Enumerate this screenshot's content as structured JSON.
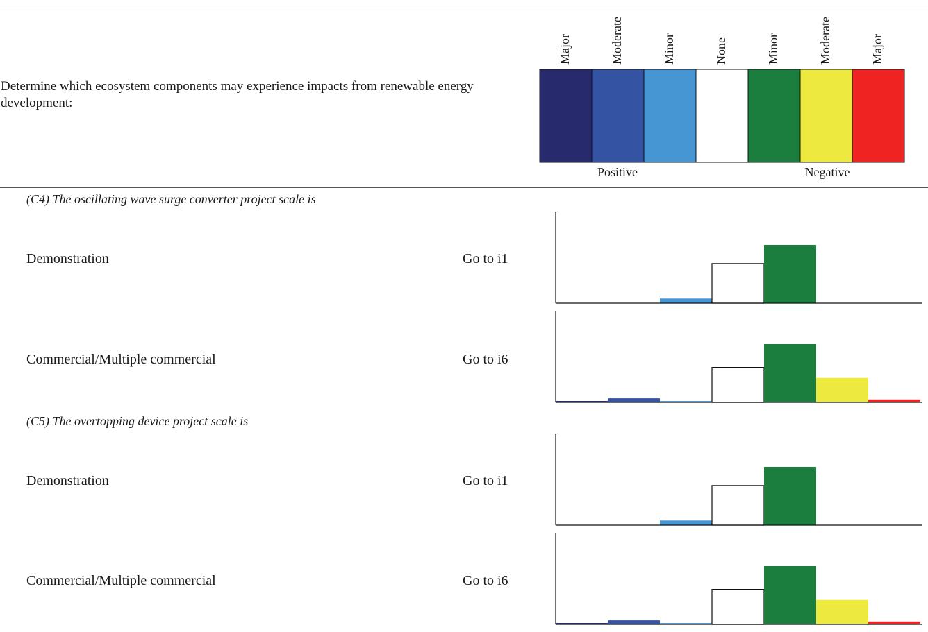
{
  "intro_text": "Determine which ecosystem components may experience impacts from renewable energy development:",
  "legend": {
    "categories": [
      {
        "label": "Major",
        "color": "#272a6d"
      },
      {
        "label": "Moderate",
        "color": "#3453a3"
      },
      {
        "label": "Minor",
        "color": "#4796d4"
      },
      {
        "label": "None",
        "color": "#ffffff"
      },
      {
        "label": "Minor",
        "color": "#1b7e3e"
      },
      {
        "label": "Moderate",
        "color": "#eee93e"
      },
      {
        "label": "Major",
        "color": "#ee2322"
      }
    ],
    "groups": [
      "Positive",
      "Negative"
    ]
  },
  "sections": [
    {
      "title": "(C4) The oscillating wave surge converter project scale is",
      "rows": [
        {
          "label": "Demonstration",
          "goto": "Go to i1"
        },
        {
          "label": "Commercial/Multiple commercial",
          "goto": "Go to i6"
        }
      ]
    },
    {
      "title": "(C5) The overtopping device project scale is",
      "rows": [
        {
          "label": "Demonstration",
          "goto": "Go to i1"
        },
        {
          "label": "Commercial/Multiple commercial",
          "goto": "Go to i6"
        }
      ]
    }
  ],
  "chart_data": [
    {
      "type": "bar",
      "categories": [
        "Major",
        "Moderate",
        "Minor",
        "None",
        "Minor",
        "Moderate",
        "Major"
      ],
      "values": [
        0,
        0,
        0.08,
        0.68,
        1.0,
        0,
        0
      ]
    },
    {
      "type": "bar",
      "categories": [
        "Major",
        "Moderate",
        "Minor",
        "None",
        "Minor",
        "Moderate",
        "Major"
      ],
      "values": [
        0.02,
        0.07,
        0.02,
        0.6,
        1.0,
        0.42,
        0.05
      ]
    },
    {
      "type": "bar",
      "categories": [
        "Major",
        "Moderate",
        "Minor",
        "None",
        "Minor",
        "Moderate",
        "Major"
      ],
      "values": [
        0,
        0,
        0.08,
        0.68,
        1.0,
        0,
        0
      ]
    },
    {
      "type": "bar",
      "categories": [
        "Major",
        "Moderate",
        "Minor",
        "None",
        "Minor",
        "Moderate",
        "Major"
      ],
      "values": [
        0.02,
        0.07,
        0.02,
        0.6,
        1.0,
        0.42,
        0.05
      ]
    }
  ]
}
